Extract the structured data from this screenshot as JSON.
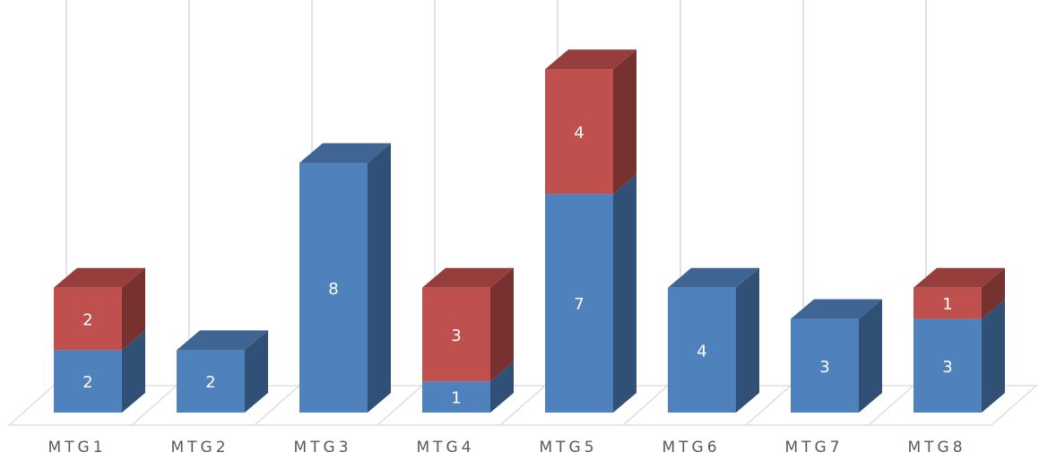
{
  "chart_data": {
    "type": "bar",
    "stacked": true,
    "style": "3d-stacked-column",
    "categories": [
      "MTG1",
      "MTG2",
      "MTG3",
      "MTG4",
      "MTG5",
      "MTG6",
      "MTG7",
      "MTG8"
    ],
    "series": [
      {
        "values": [
          2,
          2,
          8,
          1,
          7,
          4,
          3,
          3
        ],
        "color": "#4f81bd"
      },
      {
        "values": [
          2,
          0,
          0,
          3,
          4,
          0,
          0,
          1
        ],
        "color": "#c0504d"
      }
    ],
    "ylim": [
      0,
      13
    ],
    "grid": true,
    "legend": "none",
    "title": "",
    "xlabel": "",
    "ylabel": ""
  }
}
